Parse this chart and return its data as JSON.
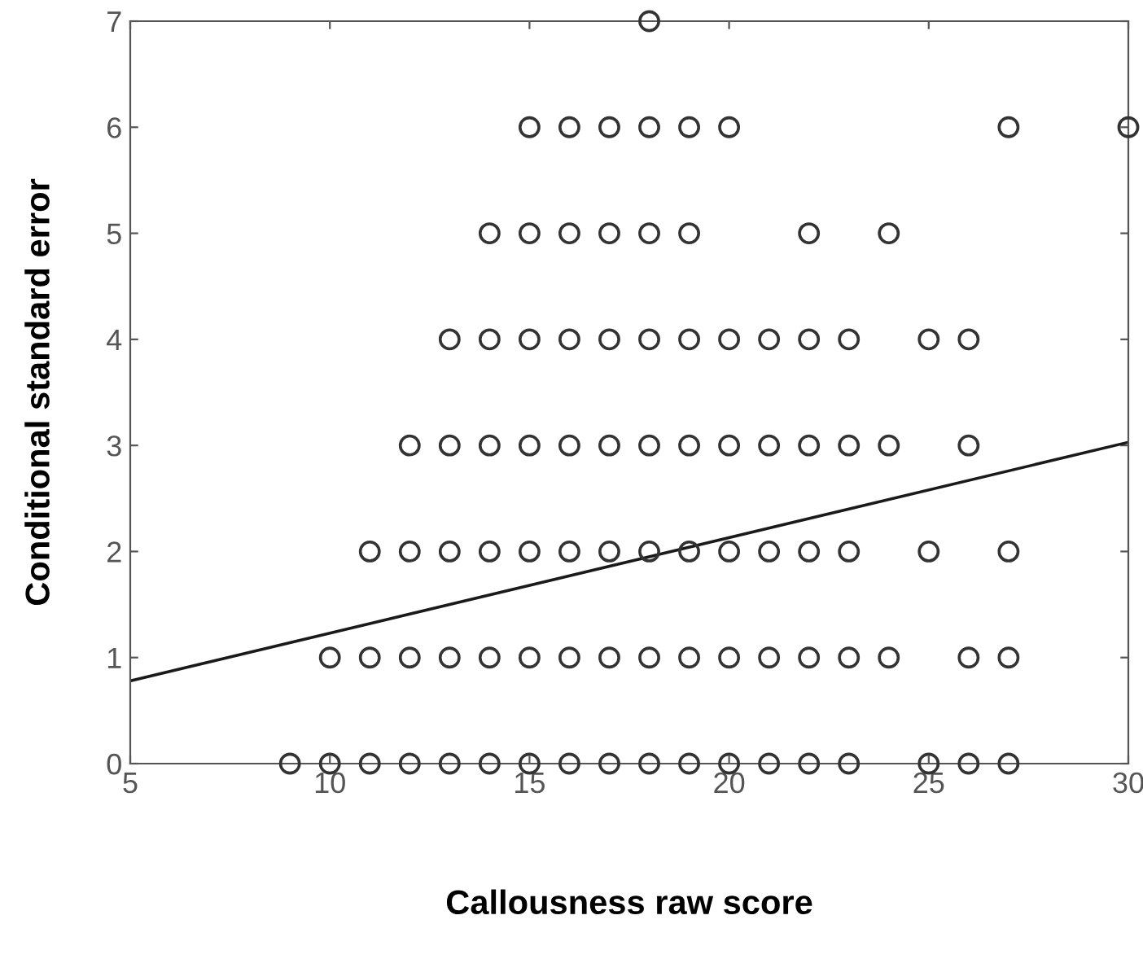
{
  "chart_data": {
    "type": "scatter",
    "xlabel": "Callousness raw score",
    "ylabel": "Conditional standard error",
    "xlim": [
      5,
      30
    ],
    "ylim": [
      0,
      7
    ],
    "xticks": [
      5,
      10,
      15,
      20,
      25,
      30
    ],
    "yticks": [
      0,
      1,
      2,
      3,
      4,
      5,
      6,
      7
    ],
    "grid": false,
    "legend": false,
    "series": [
      {
        "color": "#333333",
        "marker": "circle",
        "x": [
          18,
          15,
          16,
          17,
          18,
          19,
          20,
          27,
          30,
          14,
          15,
          16,
          17,
          18,
          19,
          22,
          24,
          13,
          14,
          15,
          16,
          17,
          18,
          19,
          20,
          21,
          22,
          23,
          25,
          26,
          12,
          13,
          14,
          15,
          16,
          17,
          18,
          19,
          20,
          21,
          22,
          23,
          24,
          26,
          11,
          12,
          13,
          14,
          15,
          16,
          17,
          18,
          19,
          20,
          21,
          22,
          23,
          25,
          27,
          10,
          11,
          12,
          13,
          14,
          15,
          16,
          17,
          18,
          19,
          20,
          21,
          22,
          23,
          24,
          26,
          27,
          9,
          10,
          11,
          12,
          13,
          14,
          15,
          16,
          17,
          18,
          19,
          20,
          21,
          22,
          23,
          25,
          26,
          27
        ],
        "values": [
          7,
          6,
          6,
          6,
          6,
          6,
          6,
          6,
          6,
          5,
          5,
          5,
          5,
          5,
          5,
          5,
          5,
          4,
          4,
          4,
          4,
          4,
          4,
          4,
          4,
          4,
          4,
          4,
          4,
          4,
          3,
          3,
          3,
          3,
          3,
          3,
          3,
          3,
          3,
          3,
          3,
          3,
          3,
          3,
          2,
          2,
          2,
          2,
          2,
          2,
          2,
          2,
          2,
          2,
          2,
          2,
          2,
          2,
          2,
          1,
          1,
          1,
          1,
          1,
          1,
          1,
          1,
          1,
          1,
          1,
          1,
          1,
          1,
          1,
          1,
          1,
          0,
          0,
          0,
          0,
          0,
          0,
          0,
          0,
          0,
          0,
          0,
          0,
          0,
          0,
          0,
          0,
          0,
          0
        ]
      },
      {
        "type": "line",
        "color": "#1a1a1a",
        "x": [
          5,
          30
        ],
        "values": [
          0.78,
          3.03
        ]
      }
    ]
  }
}
